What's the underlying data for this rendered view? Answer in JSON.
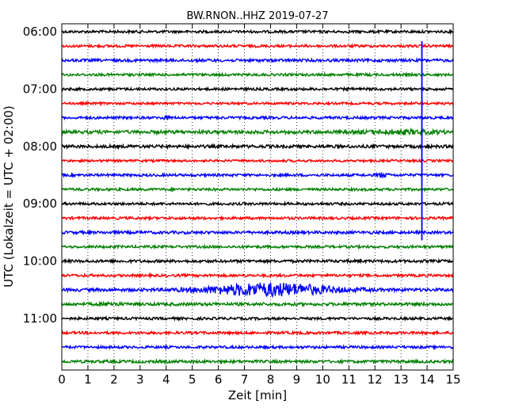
{
  "chart_data": {
    "type": "line",
    "title": "BW.RNON..HHZ 2019-07-27",
    "xlabel": "Zeit  [min]",
    "ylabel": "UTC (Lokalzeit = UTC + 02:00)",
    "xlim": [
      0,
      15
    ],
    "x_ticks": [
      0,
      1,
      2,
      3,
      4,
      5,
      6,
      7,
      8,
      9,
      10,
      11,
      12,
      13,
      14,
      15
    ],
    "x_tick_labels": [
      "0",
      "1",
      "2",
      "3",
      "4",
      "5",
      "6",
      "7",
      "8",
      "9",
      "10",
      "11",
      "12",
      "13",
      "14",
      "15"
    ],
    "y_tick_labels": [
      "06:00",
      "07:00",
      "08:00",
      "09:00",
      "10:00",
      "11:00"
    ],
    "y_tick_trace_index": [
      0,
      4,
      8,
      12,
      16,
      20
    ],
    "grid": "vertical-dotted",
    "trace_interval_min": 15,
    "trace_colors": [
      "#000000",
      "#ff0000",
      "#0000ff",
      "#008000"
    ],
    "traces": [
      {
        "start": "06:00",
        "color": "#000000",
        "amplitude": 1.0
      },
      {
        "start": "06:15",
        "color": "#ff0000",
        "amplitude": 1.0
      },
      {
        "start": "06:30",
        "color": "#0000ff",
        "amplitude": 1.1
      },
      {
        "start": "06:45",
        "color": "#008000",
        "amplitude": 1.0
      },
      {
        "start": "07:00",
        "color": "#000000",
        "amplitude": 1.0
      },
      {
        "start": "07:15",
        "color": "#ff0000",
        "amplitude": 0.9
      },
      {
        "start": "07:30",
        "color": "#0000ff",
        "amplitude": 1.0
      },
      {
        "start": "07:45",
        "color": "#008000",
        "amplitude": 1.3
      },
      {
        "start": "08:00",
        "color": "#000000",
        "amplitude": 1.2
      },
      {
        "start": "08:15",
        "color": "#ff0000",
        "amplitude": 0.9
      },
      {
        "start": "08:30",
        "color": "#0000ff",
        "amplitude": 1.0
      },
      {
        "start": "08:45",
        "color": "#008000",
        "amplitude": 1.0
      },
      {
        "start": "09:00",
        "color": "#000000",
        "amplitude": 1.0
      },
      {
        "start": "09:15",
        "color": "#ff0000",
        "amplitude": 1.0
      },
      {
        "start": "09:30",
        "color": "#0000ff",
        "amplitude": 1.1
      },
      {
        "start": "09:45",
        "color": "#008000",
        "amplitude": 1.0
      },
      {
        "start": "10:00",
        "color": "#000000",
        "amplitude": 1.1
      },
      {
        "start": "10:15",
        "color": "#ff0000",
        "amplitude": 1.0
      },
      {
        "start": "10:30",
        "color": "#0000ff",
        "amplitude": 1.2
      },
      {
        "start": "10:45",
        "color": "#008000",
        "amplitude": 1.2
      },
      {
        "start": "11:00",
        "color": "#000000",
        "amplitude": 1.0
      },
      {
        "start": "11:15",
        "color": "#ff0000",
        "amplitude": 1.0
      },
      {
        "start": "11:30",
        "color": "#0000ff",
        "amplitude": 1.0
      },
      {
        "start": "11:45",
        "color": "#008000",
        "amplitude": 1.1
      }
    ],
    "events": [
      {
        "trace_start": "06:00",
        "x_min": 13.8,
        "type": "vertical-spike",
        "color": "#0000ff",
        "end_trace_start": "09:30"
      },
      {
        "trace_start": "10:30",
        "x_min": 8.0,
        "type": "burst",
        "width_min": 5.0,
        "strength": 5.0
      },
      {
        "trace_start": "07:45",
        "x_min": 13.0,
        "type": "burst",
        "width_min": 3.0,
        "strength": 1.8
      },
      {
        "trace_start": "08:30",
        "x_min": 12.3,
        "type": "burst",
        "width_min": 0.4,
        "strength": 2.5
      },
      {
        "trace_start": "10:45",
        "x_min": 1.9,
        "type": "burst",
        "width_min": 0.6,
        "strength": 1.8
      },
      {
        "trace_start": "07:30",
        "x_min": 4.0,
        "type": "burst",
        "width_min": 0.3,
        "strength": 2.0
      }
    ]
  }
}
